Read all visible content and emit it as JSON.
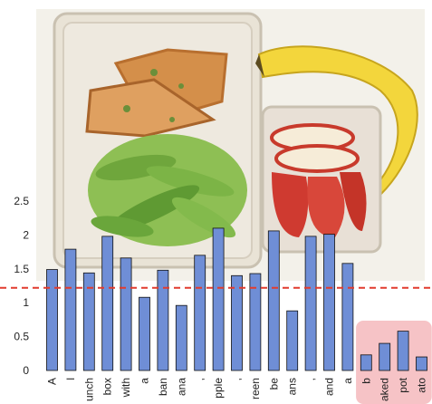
{
  "chart_data": {
    "type": "bar",
    "tokens": [
      "A",
      "l",
      "unch",
      "box",
      "with",
      "a",
      "ban",
      "ana",
      ",",
      "pple",
      ",",
      "reen",
      "be",
      "ans",
      ",",
      "and",
      "a",
      "b",
      "aked",
      "pot",
      "ato"
    ],
    "values": [
      1.49,
      1.79,
      1.44,
      1.98,
      1.66,
      1.08,
      1.48,
      0.96,
      1.7,
      2.1,
      1.4,
      1.43,
      2.06,
      0.88,
      1.98,
      2.01,
      1.58,
      0.23,
      0.4,
      0.58,
      0.2
    ],
    "highlighted_indices": [
      17,
      18,
      19,
      20
    ],
    "threshold": 1.22,
    "yticks": [
      "0",
      "0.5",
      "1",
      "1.5",
      "2",
      "2.5"
    ],
    "ylim": [
      0,
      2.5
    ],
    "colors": {
      "bar": "#6f8ed6",
      "bar_stroke": "#111111",
      "threshold": "#e23b2e",
      "highlight": "#f6c3c6"
    }
  },
  "photo": {
    "description_icon": "lunchbox-photo",
    "items": [
      "frittata-icon",
      "snap-peas-icon",
      "apple-slices-icon",
      "banana-icon"
    ]
  }
}
